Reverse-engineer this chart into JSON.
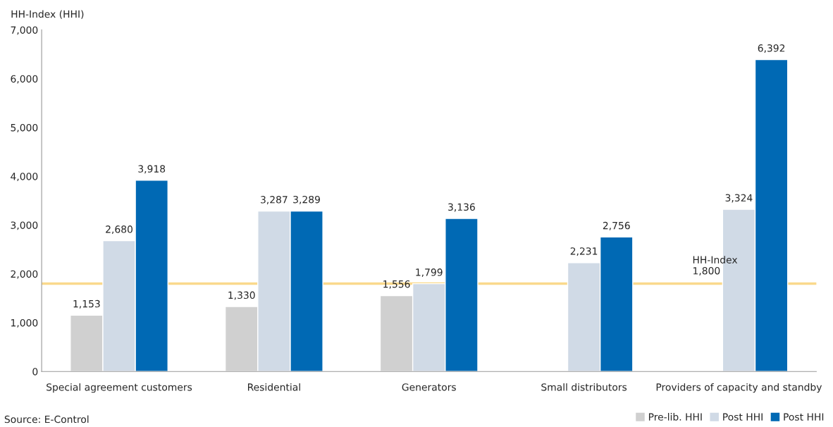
{
  "chart_data": {
    "type": "bar",
    "ylabel": "HH-Index (HHI)",
    "categories": [
      "Special agreement customers",
      "Residential",
      "Generators",
      "Small distributors",
      "Providers of capacity and standby"
    ],
    "series": [
      {
        "name": "Pre-lib. HHI",
        "color": "#d0d0d0",
        "values": [
          1153,
          1330,
          1556,
          null,
          null
        ],
        "value_labels": [
          "1,153",
          "1,330",
          "1,556",
          null,
          null
        ]
      },
      {
        "name": "Post HHI",
        "color": "#d0dae6",
        "values": [
          2680,
          3287,
          1799,
          2231,
          3324
        ],
        "value_labels": [
          "2,680",
          "3,287",
          "1,799",
          "2,231",
          "3,324"
        ]
      },
      {
        "name": "Post HHI",
        "color": "#0069b4",
        "values": [
          3918,
          3289,
          3136,
          2756,
          6392
        ],
        "value_labels": [
          "3,918",
          "3,289",
          "3,136",
          "2,756",
          "6,392"
        ]
      }
    ],
    "ylim": [
      0,
      7000
    ],
    "yticks": [
      {
        "value": 0,
        "label": "0"
      },
      {
        "value": 1000,
        "label": "1,000"
      },
      {
        "value": 2000,
        "label": "2,000"
      },
      {
        "value": 3000,
        "label": "3,000"
      },
      {
        "value": 4000,
        "label": "4,000"
      },
      {
        "value": 5000,
        "label": "5,000"
      },
      {
        "value": 6000,
        "label": "6,000"
      },
      {
        "value": 7000,
        "label": "7,000"
      }
    ],
    "ref_lines": [
      {
        "axis": "y",
        "value": 1800,
        "label": "HH-Index\n1,800",
        "color": "#fad98c"
      }
    ],
    "grid": false,
    "legend": "bottom right",
    "annotations": [
      "Source: E-Control"
    ]
  }
}
